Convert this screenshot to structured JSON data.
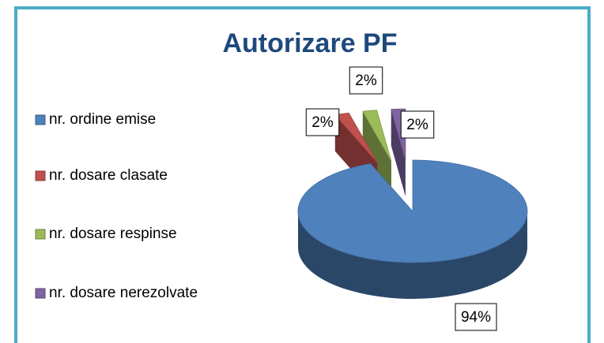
{
  "chart_data": {
    "type": "pie",
    "title": "Autorizare PF",
    "categories": [
      "nr. ordine emise",
      "nr. dosare clasate",
      "nr. dosare respinse",
      "nr. dosare nerezolvate"
    ],
    "values": [
      94,
      2,
      2,
      2
    ],
    "value_labels": [
      "94%",
      "2%",
      "2%",
      "2%"
    ],
    "colors": [
      "#4f81bd",
      "#c0504d",
      "#9bbb59",
      "#8064a2"
    ],
    "legend": "left"
  }
}
